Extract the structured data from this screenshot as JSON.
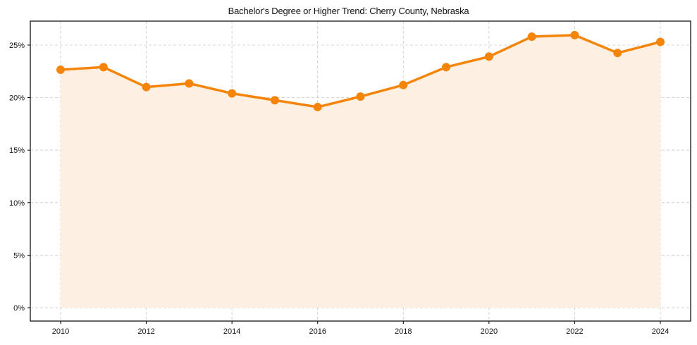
{
  "chart_data": {
    "type": "line",
    "title": "Bachelor's Degree or Higher Trend: Cherry County, Nebraska",
    "xlabel": "",
    "ylabel": "",
    "x": [
      2010,
      2011,
      2012,
      2013,
      2014,
      2015,
      2016,
      2017,
      2018,
      2019,
      2020,
      2021,
      2022,
      2023,
      2024
    ],
    "series": [
      {
        "name": "Bachelor's Degree or Higher",
        "values": [
          22.65,
          22.9,
          21.0,
          21.35,
          20.4,
          19.75,
          19.1,
          20.1,
          21.2,
          22.9,
          23.9,
          25.8,
          25.95,
          24.25,
          25.3
        ],
        "color": "#f5850a",
        "fill_color": "#fdf0e3"
      }
    ],
    "xticks": [
      "2010",
      "2012",
      "2014",
      "2016",
      "2018",
      "2020",
      "2022",
      "2024"
    ],
    "yticks": [
      "0%",
      "5%",
      "10%",
      "15%",
      "20%",
      "25%"
    ],
    "ylim": [
      -1.3,
      27.3
    ],
    "xlim": [
      2009.3,
      2024.7
    ],
    "grid": true,
    "legend": null
  }
}
